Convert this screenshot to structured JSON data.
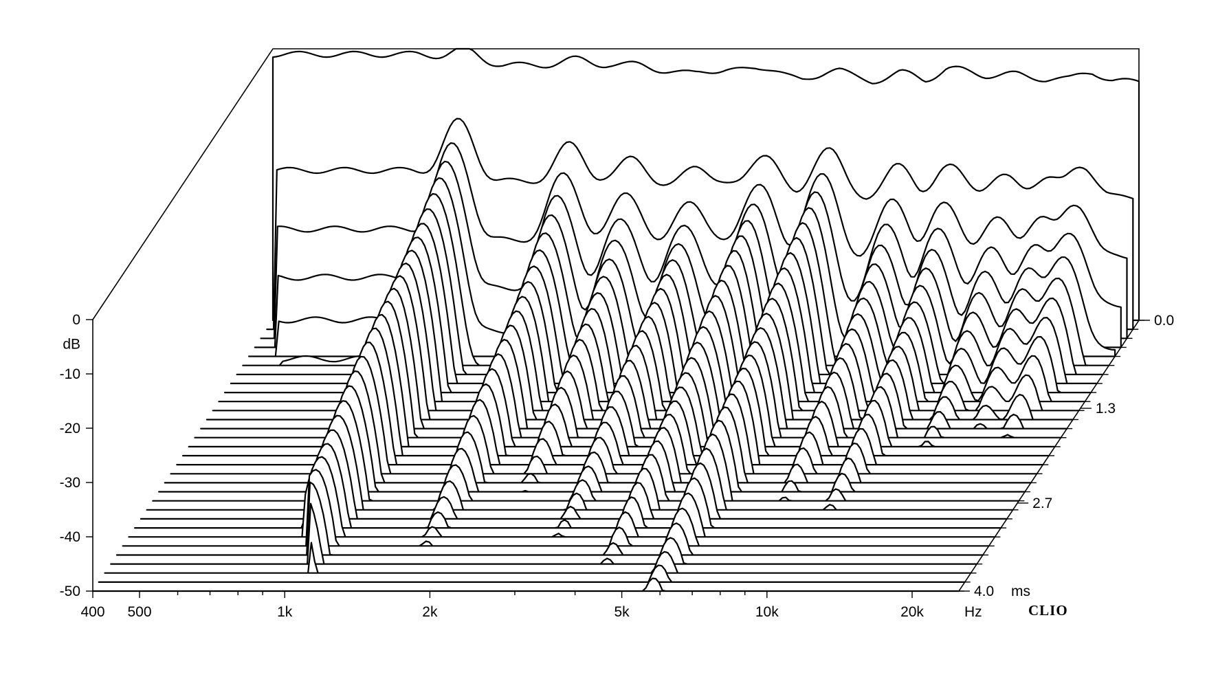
{
  "chart_data": {
    "type": "waterfall",
    "title": "",
    "brand_label": "CLIO",
    "x_axis": {
      "scale": "log",
      "range_hz": [
        400,
        25000
      ],
      "unit_label": "Hz",
      "tick_values": [
        400,
        500,
        1000,
        2000,
        5000,
        10000,
        20000
      ],
      "tick_labels": [
        "400",
        "500",
        "1k",
        "2k",
        "5k",
        "10k",
        "20k"
      ],
      "minor_ticks": [
        600,
        700,
        800,
        900,
        3000,
        4000,
        6000,
        7000,
        8000,
        9000
      ]
    },
    "y_axis": {
      "label": "dB",
      "range": [
        -50,
        0
      ],
      "tick_values": [
        0,
        -10,
        -20,
        -30,
        -40,
        -50
      ],
      "tick_labels": [
        "0",
        "-10",
        "-20",
        "-30",
        "-40",
        "-50"
      ]
    },
    "z_axis": {
      "unit_label": "ms",
      "range_ms": [
        0.0,
        4.0
      ],
      "tick_values": [
        0.0,
        1.3,
        2.7,
        4.0
      ],
      "tick_labels": [
        "0.0",
        "1.3",
        "2.7",
        "4.0"
      ]
    },
    "slice_count": 31,
    "spectrum_freqs_hz": [
      400,
      500,
      600,
      700,
      800,
      900,
      1000,
      1200,
      1500,
      1800,
      2000,
      2500,
      3000,
      3500,
      4000,
      4500,
      5000,
      6000,
      7000,
      8000,
      9000,
      10000,
      12000,
      14000,
      16000,
      18000,
      20000,
      22000,
      25000
    ],
    "spectrum_t0_db": [
      -1,
      -1,
      -1,
      -1,
      -1,
      -1.5,
      -2,
      -3,
      -3,
      -3,
      -3,
      -4,
      -5,
      -4,
      -4,
      -5,
      -6,
      -5,
      -6,
      -5,
      -6,
      -4,
      -5,
      -5,
      -6,
      -6,
      -5,
      -6,
      -6
    ],
    "resonances": [
      {
        "freq_hz": 1000,
        "level_db": -14,
        "decay_ms": 4.0
      },
      {
        "freq_hz": 1700,
        "level_db": -20,
        "decay_ms": 3.0
      },
      {
        "freq_hz": 2300,
        "level_db": -24,
        "decay_ms": 2.6
      },
      {
        "freq_hz": 3100,
        "level_db": -26,
        "decay_ms": 3.5
      },
      {
        "freq_hz": 4300,
        "level_db": -22,
        "decay_ms": 3.5
      },
      {
        "freq_hz": 5800,
        "level_db": -20,
        "decay_ms": 3.8
      },
      {
        "freq_hz": 8200,
        "level_db": -26,
        "decay_ms": 3.0
      },
      {
        "freq_hz": 10500,
        "level_db": -28,
        "decay_ms": 3.5
      },
      {
        "freq_hz": 13500,
        "level_db": -32,
        "decay_ms": 2.8
      },
      {
        "freq_hz": 16500,
        "level_db": -30,
        "decay_ms": 2.2
      },
      {
        "freq_hz": 19500,
        "level_db": -25,
        "decay_ms": 1.8
      }
    ],
    "grid": false
  }
}
